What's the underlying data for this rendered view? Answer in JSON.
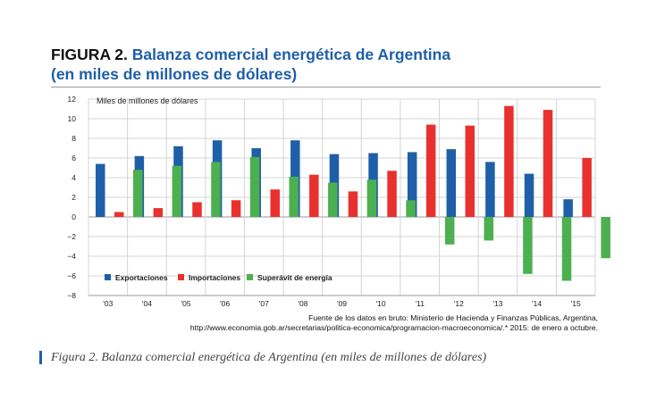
{
  "figure": {
    "label": "FIGURA 2.",
    "title_line1": "Balanza comercial energética de Argentina",
    "title_line2": "(en miles de millones de dólares)"
  },
  "source": {
    "line1": "Fuente de los datos en bruto: Ministerio de Hacienda y Finanzas Públicas, Argentina,",
    "line2": "http://www.economia.gob.ar/secretarias/politica-economica/programacion-macroeconomica/.* 2015: de enero a octubre."
  },
  "caption": "Figura 2. Balanza comercial energética de Argentina (en miles de millones de dólares)",
  "colors": {
    "exportaciones": "#1f5fa8",
    "importaciones": "#e8312f",
    "superavit": "#4caf50",
    "grid": "#d4d4d4",
    "axis": "#999999"
  },
  "chart_data": {
    "type": "bar",
    "ylabel": "Miles de millones de dólares",
    "ylim": [
      -8,
      12
    ],
    "yticks": [
      -8,
      -6,
      -4,
      -2,
      0,
      2,
      4,
      6,
      8,
      10,
      12
    ],
    "grid": true,
    "legend_position": "bottom-left",
    "categories": [
      "'03",
      "'04",
      "'05",
      "'06",
      "'07",
      "'08",
      "'09",
      "'10",
      "'11",
      "'12",
      "'13",
      "'14",
      "'15"
    ],
    "series": [
      {
        "name": "Exportaciones",
        "values": [
          5.4,
          6.2,
          7.2,
          7.8,
          7.0,
          7.8,
          6.4,
          6.5,
          6.6,
          6.9,
          5.6,
          4.4,
          1.8
        ]
      },
      {
        "name": "Importaciones",
        "values": [
          0.5,
          0.9,
          1.5,
          1.7,
          2.8,
          4.3,
          2.6,
          4.7,
          9.4,
          9.3,
          11.3,
          10.9,
          6.0
        ]
      },
      {
        "name": "Superávit de energía",
        "values": [
          4.8,
          5.2,
          5.6,
          6.1,
          4.1,
          3.5,
          3.8,
          1.7,
          -2.8,
          -2.4,
          -5.8,
          -6.5,
          -4.2
        ]
      }
    ]
  }
}
